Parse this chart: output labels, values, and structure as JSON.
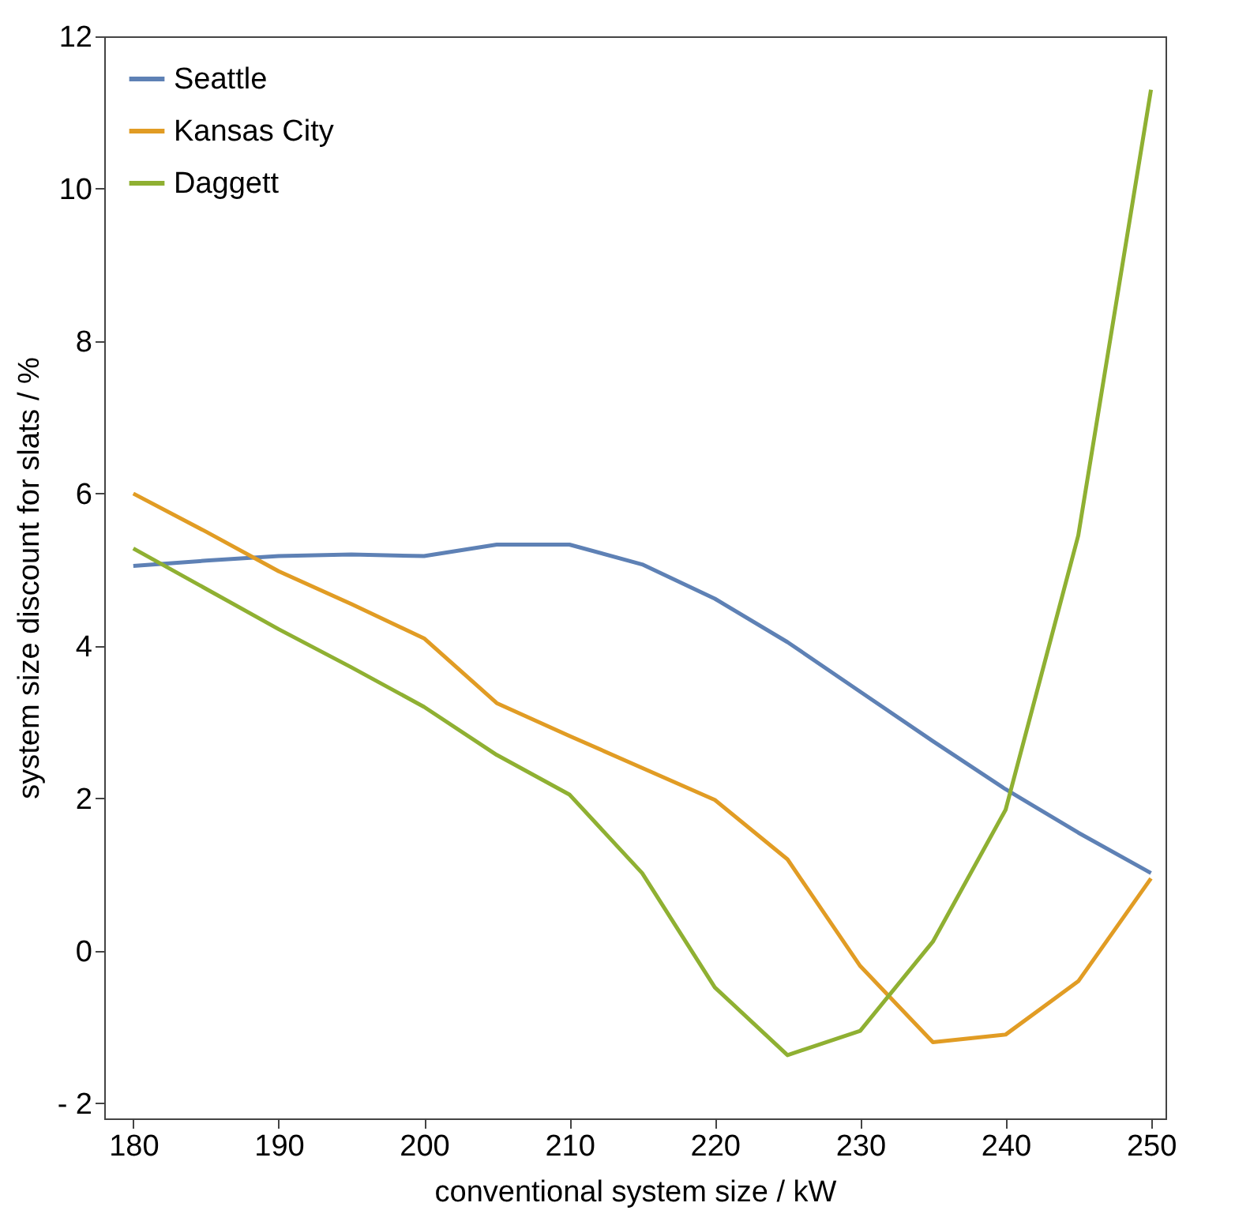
{
  "chart_data": {
    "type": "line",
    "xlabel": "conventional system size / kW",
    "ylabel": "system size discount for slats / %",
    "x": [
      180,
      185,
      190,
      195,
      200,
      205,
      210,
      215,
      220,
      225,
      230,
      235,
      240,
      245,
      250
    ],
    "series": [
      {
        "name": "Seattle",
        "color": "#5e81b5",
        "values": [
          5.05,
          5.12,
          5.18,
          5.2,
          5.18,
          5.33,
          5.33,
          5.07,
          4.62,
          4.05,
          3.4,
          2.75,
          2.12,
          1.55,
          1.02
        ]
      },
      {
        "name": "Kansas City",
        "color": "#e19c24",
        "values": [
          6.0,
          5.5,
          4.98,
          4.55,
          4.1,
          3.25,
          2.82,
          2.4,
          1.98,
          1.2,
          -0.2,
          -1.2,
          -1.1,
          -0.4,
          0.95
        ]
      },
      {
        "name": "Daggett",
        "color": "#8fb032",
        "values": [
          5.28,
          4.75,
          4.22,
          3.72,
          3.2,
          2.57,
          2.05,
          1.02,
          -0.48,
          -1.37,
          -1.05,
          0.12,
          1.85,
          5.45,
          11.3
        ]
      }
    ],
    "xlim": [
      178,
      251
    ],
    "xticks": [
      180,
      190,
      200,
      210,
      220,
      230,
      240,
      250
    ],
    "ylim": [
      -2.2,
      12
    ],
    "yticks": [
      -2,
      0,
      2,
      4,
      6,
      8,
      10,
      12
    ],
    "grid": false,
    "legend": "top left",
    "marker": "none",
    "line_style": "solid"
  }
}
